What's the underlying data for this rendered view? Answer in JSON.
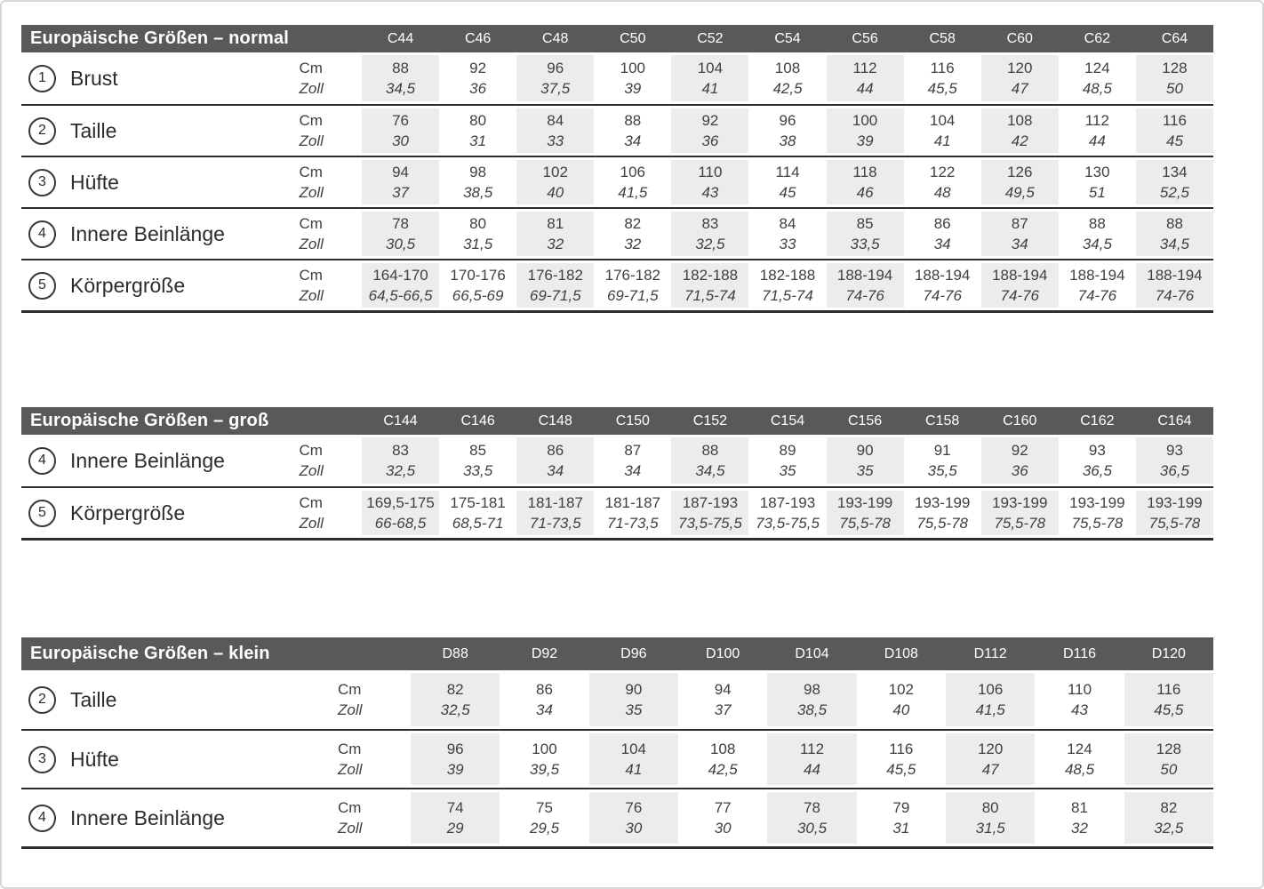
{
  "colors": {
    "header_bar": "#58595b",
    "column_stripe": "#ececed",
    "separator_line": "#2d2d2e",
    "text": "#3f4042"
  },
  "unit_labels": {
    "cm": "Cm",
    "zoll": "Zoll"
  },
  "tables": [
    {
      "id": "normal",
      "title": "Europäische Größen – normal",
      "columns": [
        "C44",
        "C46",
        "C48",
        "C50",
        "C52",
        "C54",
        "C56",
        "C58",
        "C60",
        "C62",
        "C64"
      ],
      "rows": [
        {
          "num": "1",
          "label": "Brust",
          "cm": [
            "88",
            "92",
            "96",
            "100",
            "104",
            "108",
            "112",
            "116",
            "120",
            "124",
            "128"
          ],
          "zoll": [
            "34,5",
            "36",
            "37,5",
            "39",
            "41",
            "42,5",
            "44",
            "45,5",
            "47",
            "48,5",
            "50"
          ]
        },
        {
          "num": "2",
          "label": "Taille",
          "cm": [
            "76",
            "80",
            "84",
            "88",
            "92",
            "96",
            "100",
            "104",
            "108",
            "112",
            "116"
          ],
          "zoll": [
            "30",
            "31",
            "33",
            "34",
            "36",
            "38",
            "39",
            "41",
            "42",
            "44",
            "45"
          ]
        },
        {
          "num": "3",
          "label": "Hüfte",
          "cm": [
            "94",
            "98",
            "102",
            "106",
            "110",
            "114",
            "118",
            "122",
            "126",
            "130",
            "134"
          ],
          "zoll": [
            "37",
            "38,5",
            "40",
            "41,5",
            "43",
            "45",
            "46",
            "48",
            "49,5",
            "51",
            "52,5"
          ]
        },
        {
          "num": "4",
          "label": "Innere Beinlänge",
          "cm": [
            "78",
            "80",
            "81",
            "82",
            "83",
            "84",
            "85",
            "86",
            "87",
            "88",
            "88"
          ],
          "zoll": [
            "30,5",
            "31,5",
            "32",
            "32",
            "32,5",
            "33",
            "33,5",
            "34",
            "34",
            "34,5",
            "34,5"
          ]
        },
        {
          "num": "5",
          "label": "Körpergröße",
          "cm": [
            "164-170",
            "170-176",
            "176-182",
            "176-182",
            "182-188",
            "182-188",
            "188-194",
            "188-194",
            "188-194",
            "188-194",
            "188-194"
          ],
          "zoll": [
            "64,5-66,5",
            "66,5-69",
            "69-71,5",
            "69-71,5",
            "71,5-74",
            "71,5-74",
            "74-76",
            "74-76",
            "74-76",
            "74-76",
            "74-76"
          ]
        }
      ]
    },
    {
      "id": "gross",
      "title": "Europäische Größen – groß",
      "columns": [
        "C144",
        "C146",
        "C148",
        "C150",
        "C152",
        "C154",
        "C156",
        "C158",
        "C160",
        "C162",
        "C164"
      ],
      "rows": [
        {
          "num": "4",
          "label": "Innere Beinlänge",
          "cm": [
            "83",
            "85",
            "86",
            "87",
            "88",
            "89",
            "90",
            "91",
            "92",
            "93",
            "93"
          ],
          "zoll": [
            "32,5",
            "33,5",
            "34",
            "34",
            "34,5",
            "35",
            "35",
            "35,5",
            "36",
            "36,5",
            "36,5"
          ]
        },
        {
          "num": "5",
          "label": "Körpergröße",
          "cm": [
            "169,5-175",
            "175-181",
            "181-187",
            "181-187",
            "187-193",
            "187-193",
            "193-199",
            "193-199",
            "193-199",
            "193-199",
            "193-199"
          ],
          "zoll": [
            "66-68,5",
            "68,5-71",
            "71-73,5",
            "71-73,5",
            "73,5-75,5",
            "73,5-75,5",
            "75,5-78",
            "75,5-78",
            "75,5-78",
            "75,5-78",
            "75,5-78"
          ]
        }
      ]
    },
    {
      "id": "klein",
      "title": "Europäische Größen – klein",
      "columns": [
        "D88",
        "D92",
        "D96",
        "D100",
        "D104",
        "D108",
        "D112",
        "D116",
        "D120"
      ],
      "rows": [
        {
          "num": "2",
          "label": "Taille",
          "cm": [
            "82",
            "86",
            "90",
            "94",
            "98",
            "102",
            "106",
            "110",
            "116"
          ],
          "zoll": [
            "32,5",
            "34",
            "35",
            "37",
            "38,5",
            "40",
            "41,5",
            "43",
            "45,5"
          ]
        },
        {
          "num": "3",
          "label": "Hüfte",
          "cm": [
            "96",
            "100",
            "104",
            "108",
            "112",
            "116",
            "120",
            "124",
            "128"
          ],
          "zoll": [
            "39",
            "39,5",
            "41",
            "42,5",
            "44",
            "45,5",
            "47",
            "48,5",
            "50"
          ]
        },
        {
          "num": "4",
          "label": "Innere Beinlänge",
          "cm": [
            "74",
            "75",
            "76",
            "77",
            "78",
            "79",
            "80",
            "81",
            "82"
          ],
          "zoll": [
            "29",
            "29,5",
            "30",
            "30",
            "30,5",
            "31",
            "31,5",
            "32",
            "32,5"
          ]
        }
      ]
    }
  ]
}
